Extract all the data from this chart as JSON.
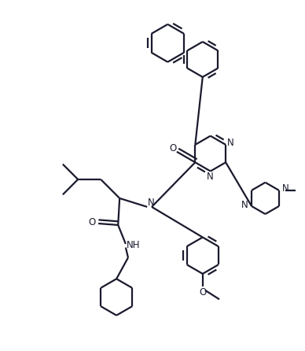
{
  "background_color": "#ffffff",
  "line_color": "#1a1a2e",
  "bond_lw": 1.6,
  "figsize": [
    3.88,
    4.46
  ],
  "dpi": 100,
  "xlim": [
    0,
    10
  ],
  "ylim": [
    0,
    11.5
  ]
}
